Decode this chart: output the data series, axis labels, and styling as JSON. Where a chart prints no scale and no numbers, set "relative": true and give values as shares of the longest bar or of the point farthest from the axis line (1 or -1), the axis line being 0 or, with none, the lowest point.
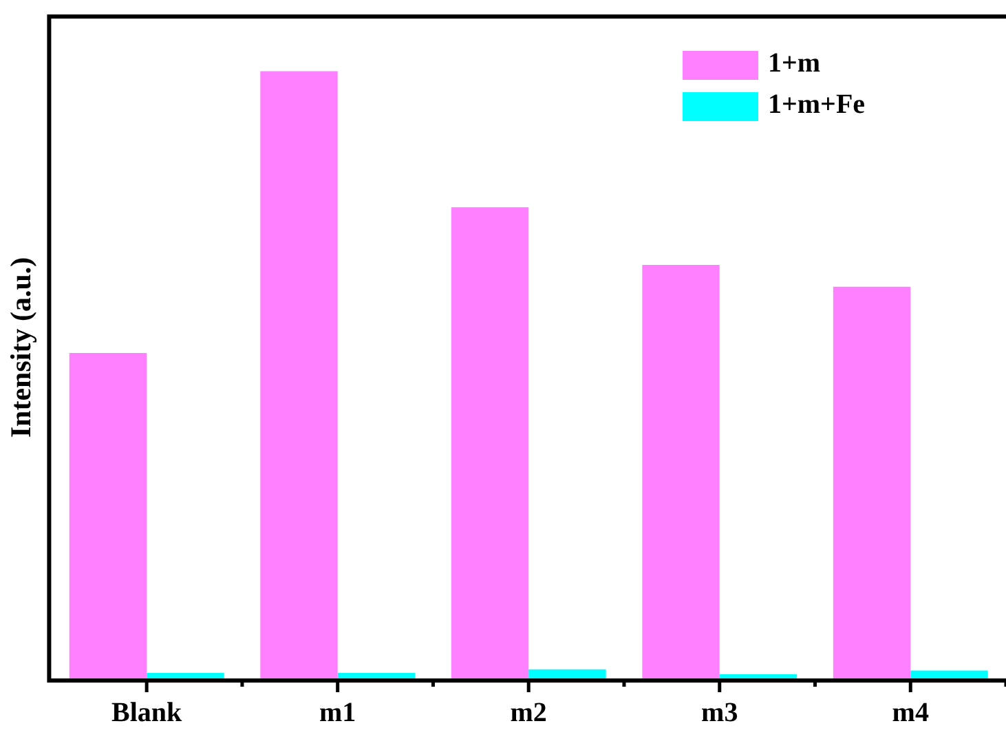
{
  "chart_data": {
    "type": "bar",
    "ylabel": "Intensity (a.u.)",
    "relative": true,
    "categories": [
      "Blank",
      "m1",
      "m2",
      "m3",
      "m4"
    ],
    "series": [
      {
        "name": "1+m",
        "color": "#ff80ff",
        "values": [
          0.536,
          1,
          0.776,
          0.681,
          0.645
        ]
      },
      {
        "name": "1+m+Fe",
        "color": "#00ffff",
        "values": [
          0.009,
          0.009,
          0.015,
          0.007,
          0.013
        ]
      }
    ],
    "legend": "top right",
    "grid": false
  }
}
